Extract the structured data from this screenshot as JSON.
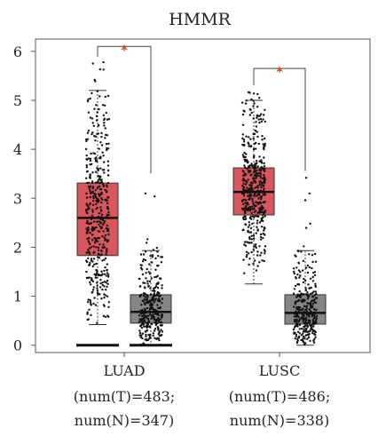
{
  "chart_data": {
    "type": "box",
    "title": "HMMR",
    "xlabel": "",
    "ylabel": "",
    "ylim": [
      -0.15,
      6.25
    ],
    "yticks": [
      0,
      1,
      2,
      3,
      4,
      5,
      6
    ],
    "significance_mark": "*",
    "categories": [
      {
        "name": "LUAD",
        "line1": "(num(T)=483;",
        "line2": "num(N)=347)"
      },
      {
        "name": "LUSC",
        "line1": "(num(T)=486;",
        "line2": "num(N)=338)"
      }
    ],
    "series": [
      {
        "name": "",
        "group": "LUAD",
        "color": "#d9565c",
        "n": 483,
        "whisker_low": 0.42,
        "q1": 1.83,
        "median": 2.6,
        "q3": 3.31,
        "whisker_high": 5.2,
        "max": 5.78,
        "floor_zero_line": true
      },
      {
        "name": "",
        "group": "LUAD",
        "color": "#858585",
        "n": 347,
        "whisker_low": 0.0,
        "q1": 0.45,
        "median": 0.68,
        "q3": 1.03,
        "whisker_high": 1.93,
        "max": 3.4,
        "floor_zero_line": true
      },
      {
        "name": "",
        "group": "LUSC",
        "color": "#d9565c",
        "n": 486,
        "whisker_low": 1.25,
        "q1": 2.66,
        "median": 3.13,
        "q3": 3.62,
        "whisker_high": 5.0,
        "max": 5.2,
        "floor_zero_line": false
      },
      {
        "name": "",
        "group": "LUSC",
        "color": "#858585",
        "n": 338,
        "whisker_low": 0.0,
        "q1": 0.43,
        "median": 0.66,
        "q3": 1.03,
        "whisker_high": 1.93,
        "max": 3.45,
        "floor_zero_line": false
      }
    ],
    "star_color": "#c8501e",
    "grid": false,
    "legend": "none"
  }
}
